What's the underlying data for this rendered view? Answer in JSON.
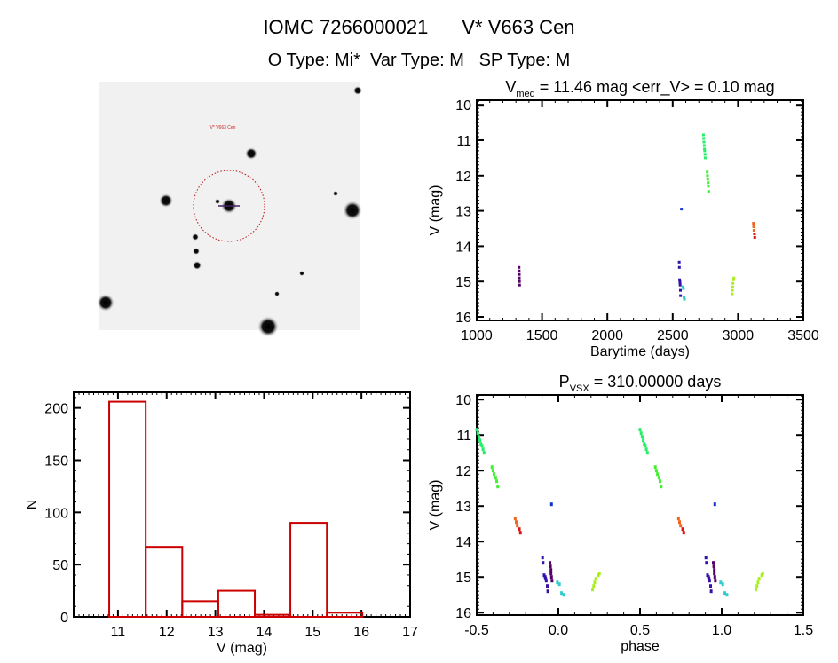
{
  "header": {
    "title_id": "IOMC 7266000021",
    "title_name": "V* V663 Cen",
    "subtitle": "O Type: Mi*  Var Type: M   SP Type: M"
  },
  "image_panel": {
    "target_label": "V* V663 Cen"
  },
  "chart_data": [
    {
      "type": "scatter",
      "title_main": "V",
      "title_sub": "med",
      "title_rest": " = 11.46 mag <err_V> = 0.10 mag",
      "xlabel": "Barytime (days)",
      "ylabel": "V (mag)",
      "xlim": [
        1000,
        3500
      ],
      "ylim": [
        16.1,
        9.87
      ],
      "y_inverted": true,
      "xticks": [
        "1000",
        "1500",
        "2000",
        "2500",
        "3000",
        "3500"
      ],
      "yticks": [
        "10",
        "11",
        "12",
        "13",
        "14",
        "15",
        "16"
      ],
      "grid": false,
      "series": [
        {
          "color": "#550066",
          "points": [
            [
              1324,
              14.6
            ],
            [
              1325,
              14.7
            ],
            [
              1326,
              14.8
            ],
            [
              1326,
              14.9
            ],
            [
              1327,
              15.0
            ],
            [
              1328,
              15.1
            ]
          ]
        },
        {
          "color": "#3311aa",
          "points": [
            [
              2550,
              14.45
            ],
            [
              2551,
              14.6
            ],
            [
              2553,
              14.95
            ],
            [
              2555,
              15.0
            ],
            [
              2556,
              15.05
            ],
            [
              2557,
              15.1
            ],
            [
              2559,
              15.25
            ],
            [
              2560,
              15.4
            ]
          ]
        },
        {
          "color": "#1133cc",
          "points": [
            [
              2567,
              12.95
            ]
          ]
        },
        {
          "color": "#33cccc",
          "points": [
            [
              2578,
              15.15
            ],
            [
              2582,
              15.2
            ],
            [
              2586,
              15.45
            ],
            [
              2590,
              15.5
            ]
          ]
        },
        {
          "color": "#22ee66",
          "points": [
            [
              2735,
              10.85
            ],
            [
              2737,
              10.95
            ],
            [
              2739,
              11.05
            ],
            [
              2741,
              11.15
            ],
            [
              2743,
              11.25
            ],
            [
              2745,
              11.3
            ],
            [
              2747,
              11.4
            ],
            [
              2749,
              11.5
            ]
          ]
        },
        {
          "color": "#44ee33",
          "points": [
            [
              2764,
              11.9
            ],
            [
              2766,
              12.0
            ],
            [
              2768,
              12.1
            ],
            [
              2771,
              12.2
            ],
            [
              2773,
              12.3
            ],
            [
              2775,
              12.45
            ]
          ]
        },
        {
          "color": "#aaee22",
          "points": [
            [
              2955,
              15.35
            ],
            [
              2957,
              15.25
            ],
            [
              2959,
              15.15
            ],
            [
              2961,
              15.05
            ],
            [
              2966,
              14.95
            ],
            [
              2968,
              14.9
            ]
          ]
        },
        {
          "color": "#ee6622",
          "points": [
            [
              3118,
              13.35
            ],
            [
              3120,
              13.45
            ],
            [
              3122,
              13.55
            ]
          ]
        },
        {
          "color": "#dd1111",
          "points": [
            [
              3126,
              13.65
            ],
            [
              3128,
              13.75
            ]
          ]
        }
      ]
    },
    {
      "type": "scatter",
      "title_main": "P",
      "title_sub": "VSX",
      "title_rest": " = 310.00000 days",
      "period_days": 310.0,
      "xlabel": "phase",
      "ylabel": "V (mag)",
      "xlim": [
        -0.5,
        1.5
      ],
      "ylim": [
        16.07,
        9.87
      ],
      "y_inverted": true,
      "xticks": [
        "-0.5",
        "0.0",
        "0.5",
        "1.0",
        "1.5"
      ],
      "yticks": [
        "10",
        "11",
        "12",
        "13",
        "14",
        "15",
        "16"
      ],
      "grid": false,
      "source": "same observations as Barytime plot, folded on period"
    },
    {
      "type": "bar",
      "histogram": true,
      "xlabel": "V (mag)",
      "ylabel": "N",
      "xlim": [
        10.09,
        17
      ],
      "ylim": [
        0,
        215
      ],
      "xticks": [
        "11",
        "12",
        "13",
        "14",
        "15",
        "16",
        "17"
      ],
      "yticks": [
        "0",
        "50",
        "100",
        "150",
        "200"
      ],
      "bin_edges": [
        10.82,
        11.57,
        12.32,
        13.06,
        13.81,
        14.54,
        15.29,
        16.02
      ],
      "values": [
        206,
        67,
        15,
        25,
        2,
        90,
        4
      ],
      "bar_color": "#cc0000",
      "grid": false
    }
  ]
}
